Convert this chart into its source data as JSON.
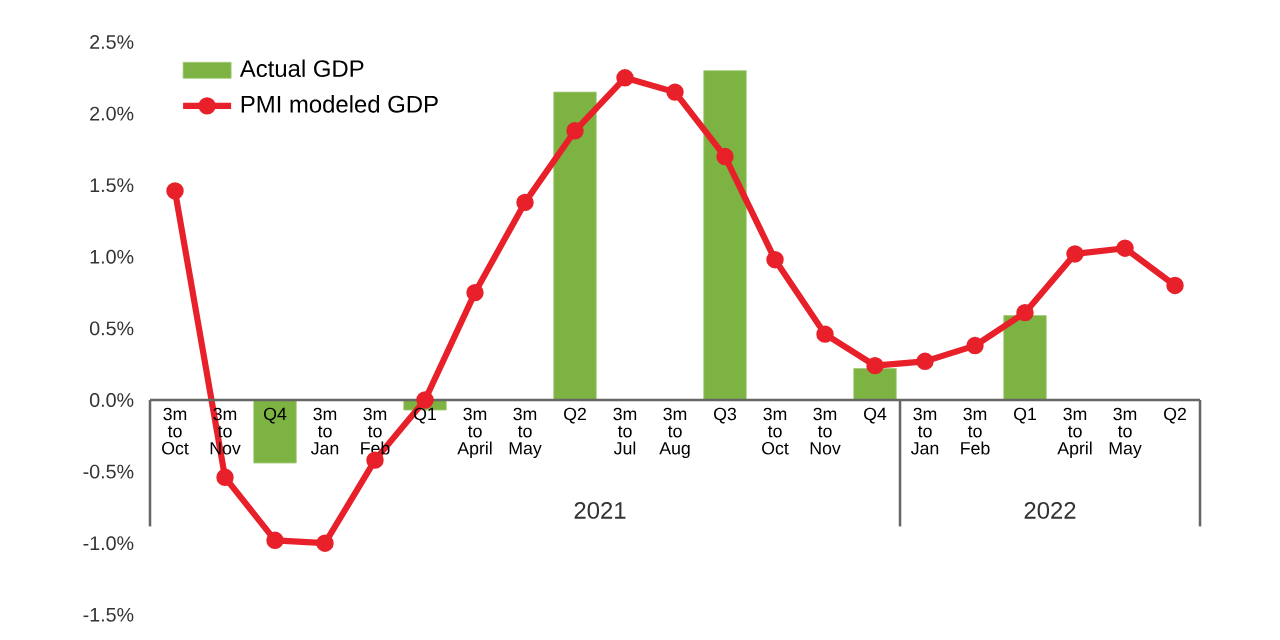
{
  "chart_data": {
    "type": "bar",
    "categories": [
      "3m to Oct",
      "3m to Nov",
      "Q4",
      "3m to Jan",
      "3m to Feb",
      "Q1",
      "3m to April",
      "3m to May",
      "Q2",
      "3m to Jul",
      "3m to Aug",
      "Q3",
      "3m to Oct",
      "3m to Nov",
      "Q4",
      "3m to Jan",
      "3m to Feb",
      "Q1",
      "3m to April",
      "3m to May",
      "Q2"
    ],
    "series": [
      {
        "name": "Actual GDP",
        "color": "#7cb342",
        "values": [
          null,
          null,
          -0.44,
          null,
          null,
          -0.07,
          null,
          null,
          2.15,
          null,
          null,
          2.3,
          null,
          null,
          0.22,
          null,
          null,
          0.59,
          null,
          null,
          null
        ]
      },
      {
        "name": "PMI modeled GDP",
        "type": "line",
        "color": "#e8202a",
        "marker": "circle",
        "values": [
          1.46,
          -0.54,
          -0.98,
          -1.0,
          -0.42,
          0.0,
          0.75,
          1.38,
          1.88,
          2.25,
          2.15,
          1.7,
          0.98,
          0.46,
          0.24,
          0.27,
          0.38,
          0.61,
          1.02,
          1.06,
          0.8
        ]
      }
    ],
    "ylim": [
      -1.5,
      2.5
    ],
    "yticks": [
      {
        "value": -1.5,
        "label": "-1.5%"
      },
      {
        "value": -1.0,
        "label": "-1.0%"
      },
      {
        "value": -0.5,
        "label": "-0.5%"
      },
      {
        "value": 0.0,
        "label": "0.0%"
      },
      {
        "value": 0.5,
        "label": "0.5%"
      },
      {
        "value": 1.0,
        "label": "1.0%"
      },
      {
        "value": 1.5,
        "label": "1.5%"
      },
      {
        "value": 2.0,
        "label": "2.0%"
      },
      {
        "value": 2.5,
        "label": "2.5%"
      }
    ],
    "annotations": [
      "2021",
      "2022"
    ],
    "grid": false,
    "legend": "top left"
  }
}
